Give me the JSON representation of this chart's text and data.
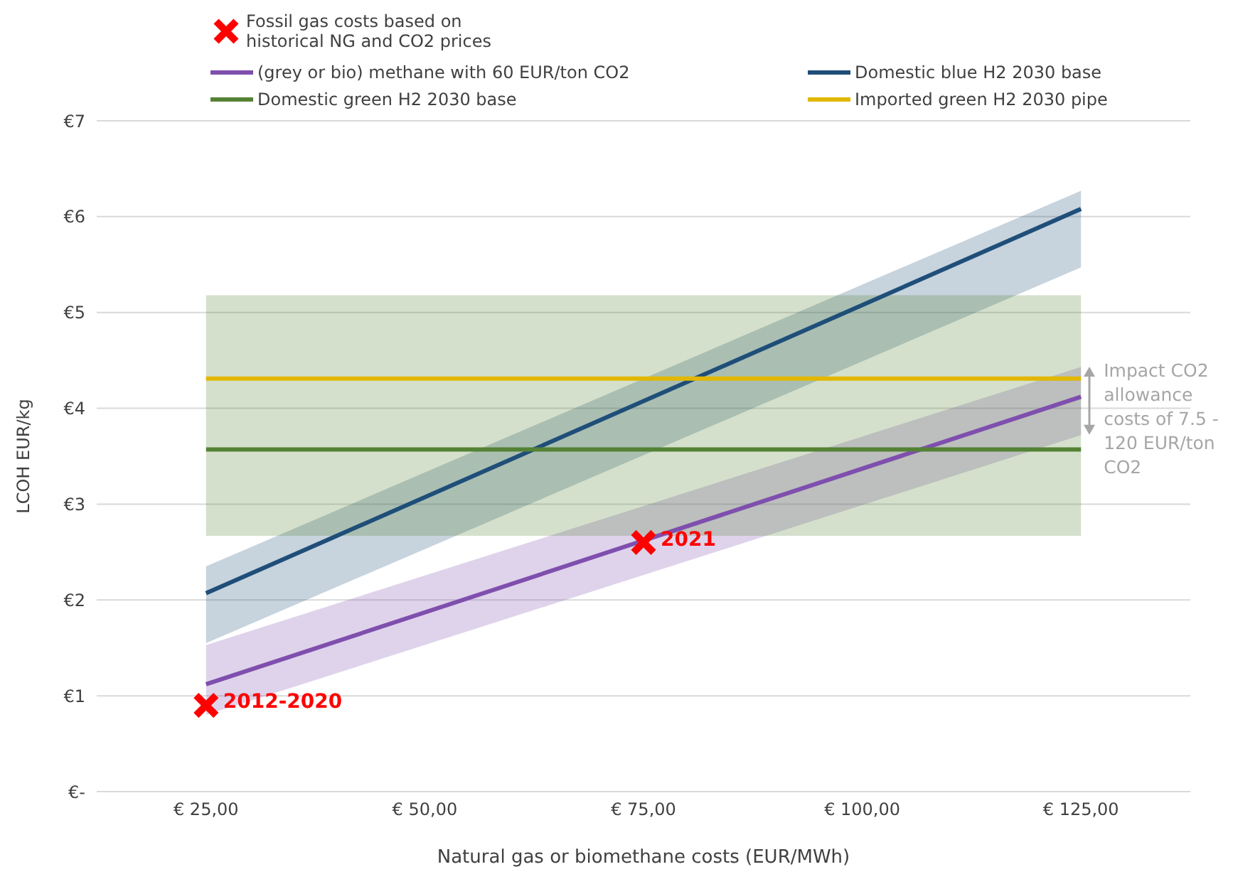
{
  "chart_data": {
    "type": "line",
    "xlabel": "Natural gas or biomethane costs (EUR/MWh)",
    "ylabel": "LCOH EUR/kg",
    "xlim": [
      12.5,
      137.5
    ],
    "xticks": [
      {
        "value": 25,
        "label": "€ 25,00"
      },
      {
        "value": 50,
        "label": "€ 50,00"
      },
      {
        "value": 75,
        "label": "€ 75,00"
      },
      {
        "value": 100,
        "label": "€ 100,00"
      },
      {
        "value": 125,
        "label": "€ 125,00"
      }
    ],
    "ylim": [
      0,
      7
    ],
    "yticks": [
      {
        "value": 0,
        "label": "€-"
      },
      {
        "value": 1,
        "label": "€1"
      },
      {
        "value": 2,
        "label": "€2"
      },
      {
        "value": 3,
        "label": "€3"
      },
      {
        "value": 4,
        "label": "€4"
      },
      {
        "value": 5,
        "label": "€5"
      },
      {
        "value": 6,
        "label": "€6"
      },
      {
        "value": 7,
        "label": "€7"
      }
    ],
    "grid": "y",
    "legend": "top",
    "line_style": "solid",
    "series": [
      {
        "type": "scatter",
        "name": "Fossil gas costs based on historical NG and CO2 prices",
        "color": "#ff0000",
        "marker": "cross",
        "x": [
          25,
          75
        ],
        "values": [
          0.9,
          2.6
        ]
      },
      {
        "name": "(grey or bio) methane with 60 EUR/ton CO2",
        "color": "#7f4fae",
        "x": [
          25,
          125
        ],
        "values": [
          1.12,
          4.12
        ],
        "lower": [
          0.8,
          3.72
        ],
        "upper": [
          1.53,
          4.43
        ]
      },
      {
        "name": "Domestic blue H2 2030 base",
        "color": "#1f4e79",
        "x": [
          25,
          125
        ],
        "values": [
          2.07,
          6.08
        ],
        "lower": [
          1.55,
          5.47
        ],
        "upper": [
          2.35,
          6.27
        ]
      },
      {
        "name": "Domestic green H2 2030 base",
        "color": "#548235",
        "x": [
          25,
          125
        ],
        "values": [
          3.57,
          3.57
        ],
        "lower": [
          2.67,
          2.67
        ],
        "upper": [
          5.18,
          5.18
        ]
      },
      {
        "name": "Imported green H2 2030 pipe",
        "color": "#e2b700",
        "x": [
          25,
          125
        ],
        "values": [
          4.31,
          4.31
        ]
      }
    ],
    "annotations": [
      {
        "text": "2012-2020",
        "x": 25,
        "y": 0.9
      },
      {
        "text": "2021",
        "x": 75,
        "y": 2.6
      },
      "Impact CO2 allowance costs of 7.5 - 120 EUR/ton CO2"
    ]
  }
}
